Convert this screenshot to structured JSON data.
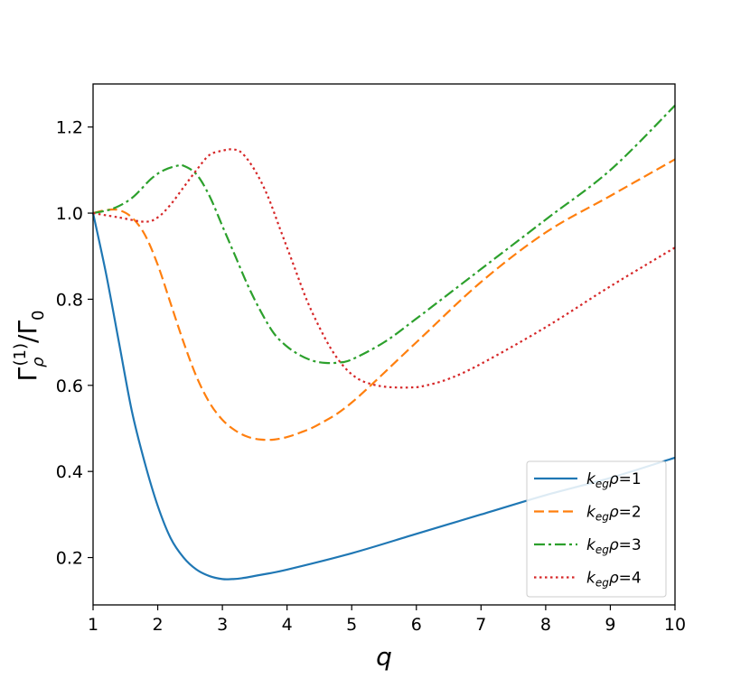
{
  "chart_data": {
    "type": "line",
    "title": "",
    "xlabel": "q",
    "ylabel": {
      "base": "Γ",
      "sub": "ρ",
      "sup": "(1)",
      "rest": "/Γ",
      "sub2": "0"
    },
    "xlim": [
      1,
      10
    ],
    "ylim": [
      0.09,
      1.3
    ],
    "xticks": [
      1,
      2,
      3,
      4,
      5,
      6,
      7,
      8,
      9,
      10
    ],
    "yticks": [
      0.2,
      0.4,
      0.6,
      0.8,
      1.0,
      1.2
    ],
    "ytick_labels": [
      "0.2",
      "0.4",
      "0.6",
      "0.8",
      "1.0",
      "1.2"
    ],
    "grid": false,
    "legend_position": "lower-right",
    "series": [
      {
        "name": "k_eg ρ=1",
        "legend": {
          "k": "k",
          "sub": "eg",
          "rho": "ρ",
          "eq": "=1"
        },
        "color": "#1f77b4",
        "style": "solid",
        "x": [
          1.0,
          1.2,
          1.4,
          1.6,
          1.8,
          2.0,
          2.2,
          2.4,
          2.6,
          2.8,
          3.0,
          3.15,
          3.3,
          3.6,
          4.0,
          5.0,
          6.0,
          7.0,
          8.0,
          9.0,
          10.0
        ],
        "y": [
          1.0,
          0.86,
          0.7,
          0.54,
          0.42,
          0.32,
          0.245,
          0.2,
          0.172,
          0.157,
          0.15,
          0.15,
          0.152,
          0.16,
          0.172,
          0.21,
          0.255,
          0.3,
          0.345,
          0.385,
          0.432
        ]
      },
      {
        "name": "k_eg ρ=2",
        "legend": {
          "k": "k",
          "sub": "eg",
          "rho": "ρ",
          "eq": "=2"
        },
        "color": "#ff7f0e",
        "style": "dashed",
        "x": [
          1.0,
          1.2,
          1.4,
          1.6,
          1.8,
          2.0,
          2.2,
          2.4,
          2.6,
          2.8,
          3.0,
          3.2,
          3.4,
          3.6,
          3.8,
          4.0,
          4.2,
          4.5,
          5.0,
          6.0,
          7.0,
          8.0,
          9.0,
          10.0
        ],
        "y": [
          1.0,
          1.007,
          1.007,
          0.99,
          0.95,
          0.88,
          0.79,
          0.7,
          0.62,
          0.56,
          0.52,
          0.495,
          0.48,
          0.474,
          0.474,
          0.48,
          0.49,
          0.51,
          0.56,
          0.7,
          0.84,
          0.955,
          1.04,
          1.125
        ]
      },
      {
        "name": "k_eg ρ=3",
        "legend": {
          "k": "k",
          "sub": "eg",
          "rho": "ρ",
          "eq": "=3"
        },
        "color": "#2ca02c",
        "style": "dashdot",
        "x": [
          1.0,
          1.3,
          1.6,
          1.9,
          2.1,
          2.3,
          2.4,
          2.6,
          2.8,
          3.0,
          3.2,
          3.4,
          3.6,
          3.8,
          4.0,
          4.2,
          4.4,
          4.6,
          4.8,
          5.0,
          5.5,
          6.0,
          7.0,
          8.0,
          9.0,
          10.0
        ],
        "y": [
          1.0,
          1.01,
          1.035,
          1.08,
          1.1,
          1.11,
          1.11,
          1.09,
          1.04,
          0.97,
          0.9,
          0.83,
          0.77,
          0.72,
          0.69,
          0.67,
          0.657,
          0.652,
          0.653,
          0.66,
          0.7,
          0.755,
          0.87,
          0.985,
          1.1,
          1.25
        ]
      },
      {
        "name": "k_eg ρ=4",
        "legend": {
          "k": "k",
          "sub": "eg",
          "rho": "ρ",
          "eq": "=4"
        },
        "color": "#d62728",
        "style": "dotted",
        "x": [
          1.0,
          1.4,
          1.8,
          2.0,
          2.2,
          2.4,
          2.6,
          2.8,
          3.0,
          3.15,
          3.3,
          3.5,
          3.7,
          3.9,
          4.1,
          4.3,
          4.5,
          4.7,
          4.9,
          5.1,
          5.3,
          5.5,
          5.7,
          5.9,
          6.1,
          6.5,
          7.0,
          8.0,
          9.0,
          10.0
        ],
        "y": [
          1.0,
          0.99,
          0.98,
          0.99,
          1.02,
          1.06,
          1.1,
          1.135,
          1.145,
          1.148,
          1.14,
          1.1,
          1.04,
          0.96,
          0.88,
          0.8,
          0.735,
          0.68,
          0.64,
          0.615,
          0.603,
          0.597,
          0.595,
          0.595,
          0.598,
          0.615,
          0.65,
          0.735,
          0.83,
          0.92
        ]
      }
    ]
  }
}
